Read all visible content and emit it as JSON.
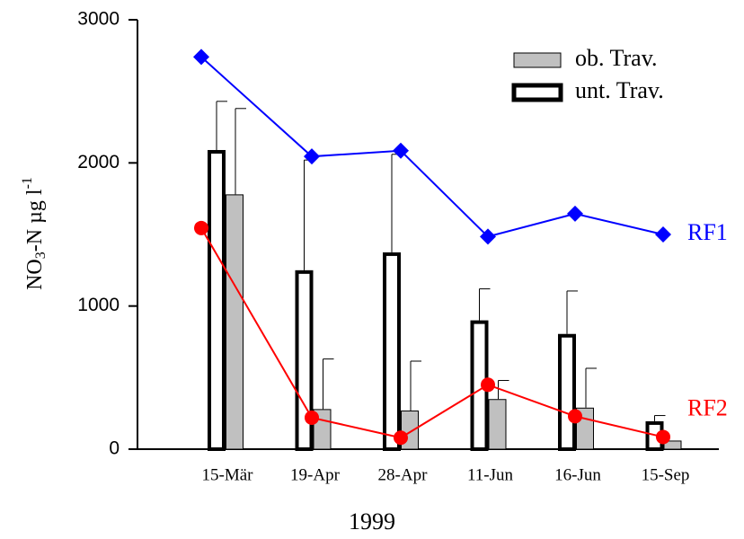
{
  "chart_data": {
    "type": "bar",
    "categories": [
      "15-Mär",
      "19-Apr",
      "28-Apr",
      "11-Jun",
      "16-Jun",
      "15-Sep"
    ],
    "x_label": "1999",
    "y_label": {
      "main": "NO",
      "sub": "3",
      "mid": "-N µg l",
      "sup": "-1"
    },
    "ylim": [
      0,
      3000
    ],
    "yticks": [
      0,
      1000,
      2000,
      3000
    ],
    "series": [
      {
        "name": "unt. Trav.",
        "color": "#ffffff",
        "values": [
          2090,
          1250,
          1375,
          900,
          805,
          195
        ],
        "errors": [
          340,
          770,
          685,
          220,
          300,
          40
        ]
      },
      {
        "name": "ob. Trav.",
        "color": "#c0c0c0",
        "values": [
          1780,
          280,
          270,
          350,
          290,
          60
        ],
        "errors": [
          600,
          350,
          345,
          130,
          275,
          null
        ]
      }
    ],
    "lines": [
      {
        "name": "RF1",
        "color": "#0000ff",
        "marker": "diamond",
        "values": [
          2740,
          2045,
          2085,
          1485,
          1645,
          1500
        ]
      },
      {
        "name": "RF2",
        "color": "#ff0000",
        "marker": "circle",
        "values": [
          1545,
          220,
          80,
          450,
          230,
          85
        ]
      }
    ]
  }
}
